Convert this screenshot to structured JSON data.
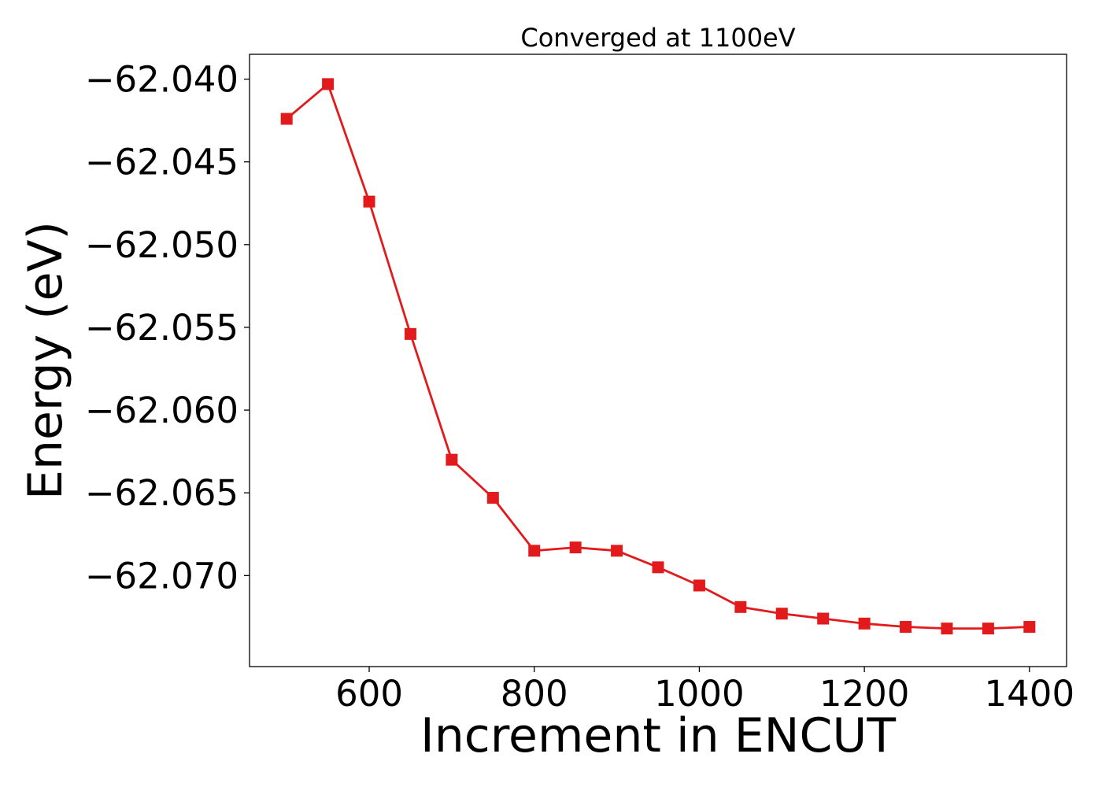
{
  "chart_data": {
    "type": "line",
    "title": "Converged at 1100eV",
    "xlabel": "Increment in ENCUT",
    "ylabel": "Energy (eV)",
    "xlim": [
      455,
      1445
    ],
    "ylim": [
      -62.0755,
      -62.0385
    ],
    "xticks": [
      600,
      800,
      1000,
      1200,
      1400
    ],
    "xtick_labels": [
      "600",
      "800",
      "1000",
      "1200",
      "1400"
    ],
    "yticks": [
      -62.04,
      -62.045,
      -62.05,
      -62.055,
      -62.06,
      -62.065,
      -62.07
    ],
    "ytick_labels": [
      "−62.040",
      "−62.045",
      "−62.050",
      "−62.055",
      "−62.060",
      "−62.065",
      "−62.070"
    ],
    "grid": false,
    "series": [
      {
        "color": "#e31a1c",
        "marker": "square",
        "x": [
          500,
          550,
          600,
          650,
          700,
          750,
          800,
          850,
          900,
          950,
          1000,
          1050,
          1100,
          1150,
          1200,
          1250,
          1300,
          1350,
          1400
        ],
        "y": [
          -62.0424,
          -62.0403,
          -62.0474,
          -62.0554,
          -62.063,
          -62.0653,
          -62.0685,
          -62.0683,
          -62.0685,
          -62.0695,
          -62.0706,
          -62.0719,
          -62.0723,
          -62.0726,
          -62.0729,
          -62.0731,
          -62.0732,
          -62.0732,
          -62.0731
        ]
      }
    ]
  }
}
